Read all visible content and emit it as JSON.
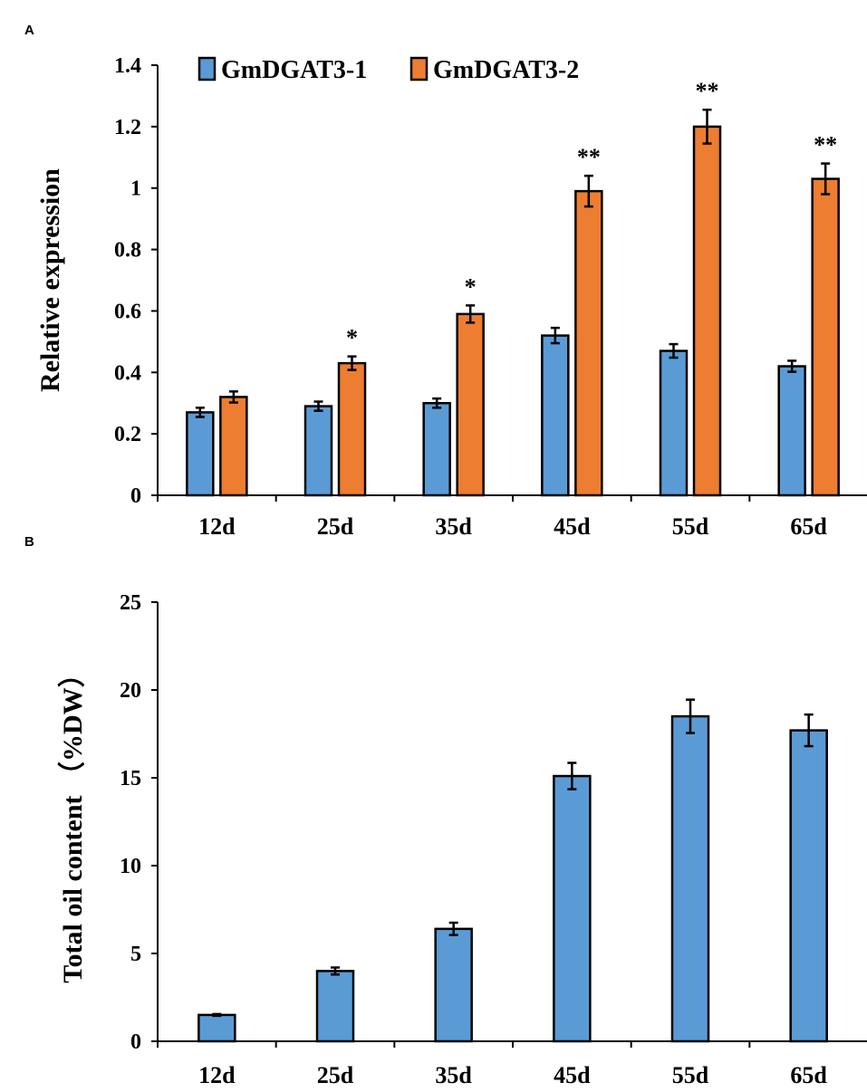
{
  "chart_data": [
    {
      "panel": "A",
      "type": "bar",
      "categories": [
        "12d",
        "25d",
        "35d",
        "45d",
        "55d",
        "65d"
      ],
      "ylabel": "Relative expression",
      "xlabel": "",
      "ylim": [
        0,
        1.4
      ],
      "yticks": [
        0,
        0.2,
        0.4,
        0.6,
        0.8,
        1,
        1.2,
        1.4
      ],
      "ytick_labels": [
        "0",
        "0.2",
        "0.4",
        "0.6",
        "0.8",
        "1",
        "1.2",
        "1.4"
      ],
      "legend_position": "top",
      "series": [
        {
          "name": "GmDGAT3-1",
          "color": "#5b9bd5",
          "values": [
            0.27,
            0.29,
            0.3,
            0.52,
            0.47,
            0.42
          ],
          "errors": [
            0.015,
            0.015,
            0.015,
            0.025,
            0.022,
            0.018
          ],
          "significance": [
            "",
            "",
            "",
            "",
            "",
            ""
          ]
        },
        {
          "name": "GmDGAT3-2",
          "color": "#ed7d31",
          "values": [
            0.32,
            0.43,
            0.59,
            0.99,
            1.2,
            1.03
          ],
          "errors": [
            0.018,
            0.022,
            0.028,
            0.05,
            0.055,
            0.05
          ],
          "significance": [
            "",
            "*",
            "*",
            "**",
            "**",
            "**"
          ]
        }
      ]
    },
    {
      "panel": "B",
      "type": "bar",
      "categories": [
        "12d",
        "25d",
        "35d",
        "45d",
        "55d",
        "65d"
      ],
      "ylabel": "Total oil content （%DW）",
      "xlabel": "",
      "ylim": [
        0,
        25
      ],
      "yticks": [
        0,
        5,
        10,
        15,
        20,
        25
      ],
      "ytick_labels": [
        "0",
        "5",
        "10",
        "15",
        "20",
        "25"
      ],
      "series": [
        {
          "name": "Total oil content",
          "color": "#5b9bd5",
          "values": [
            1.5,
            4.0,
            6.4,
            15.1,
            18.5,
            17.7
          ],
          "errors": [
            0.05,
            0.2,
            0.35,
            0.75,
            0.95,
            0.9
          ]
        }
      ]
    }
  ],
  "colors": {
    "bar_blue": "#5b9bd5",
    "bar_orange": "#ed7d31",
    "outline": "#000000"
  }
}
